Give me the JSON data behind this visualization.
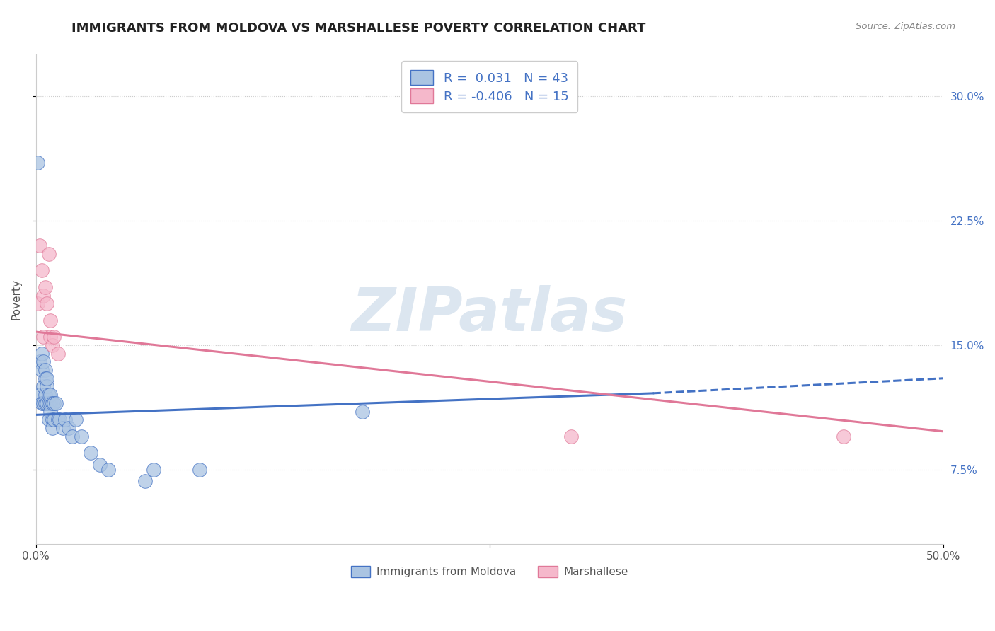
{
  "title": "IMMIGRANTS FROM MOLDOVA VS MARSHALLESE POVERTY CORRELATION CHART",
  "source_text": "Source: ZipAtlas.com",
  "ylabel": "Poverty",
  "yticks": [
    0.075,
    0.15,
    0.225,
    0.3
  ],
  "ytick_labels": [
    "7.5%",
    "15.0%",
    "22.5%",
    "30.0%"
  ],
  "xlim": [
    0.0,
    0.5
  ],
  "ylim": [
    0.03,
    0.325
  ],
  "legend_entry1": "R =  0.031   N = 43",
  "legend_entry2": "R = -0.406   N = 15",
  "legend_label1": "Immigrants from Moldova",
  "legend_label2": "Marshallese",
  "blue_color": "#aac4e2",
  "pink_color": "#f5b8cb",
  "blue_line_color": "#4472c4",
  "pink_line_color": "#e07898",
  "blue_dots_x": [
    0.001,
    0.002,
    0.002,
    0.003,
    0.003,
    0.003,
    0.004,
    0.004,
    0.004,
    0.005,
    0.005,
    0.005,
    0.005,
    0.006,
    0.006,
    0.006,
    0.007,
    0.007,
    0.007,
    0.008,
    0.008,
    0.008,
    0.009,
    0.009,
    0.009,
    0.01,
    0.01,
    0.011,
    0.012,
    0.013,
    0.015,
    0.016,
    0.018,
    0.02,
    0.022,
    0.025,
    0.03,
    0.035,
    0.04,
    0.06,
    0.065,
    0.09,
    0.18
  ],
  "blue_dots_y": [
    0.26,
    0.14,
    0.12,
    0.135,
    0.115,
    0.145,
    0.125,
    0.115,
    0.14,
    0.135,
    0.115,
    0.12,
    0.13,
    0.115,
    0.125,
    0.13,
    0.115,
    0.12,
    0.105,
    0.115,
    0.12,
    0.11,
    0.105,
    0.115,
    0.1,
    0.115,
    0.105,
    0.115,
    0.105,
    0.105,
    0.1,
    0.105,
    0.1,
    0.095,
    0.105,
    0.095,
    0.085,
    0.078,
    0.075,
    0.068,
    0.075,
    0.075,
    0.11
  ],
  "pink_dots_x": [
    0.001,
    0.002,
    0.003,
    0.004,
    0.004,
    0.005,
    0.006,
    0.007,
    0.008,
    0.008,
    0.009,
    0.01,
    0.012,
    0.295,
    0.445
  ],
  "pink_dots_y": [
    0.175,
    0.21,
    0.195,
    0.18,
    0.155,
    0.185,
    0.175,
    0.205,
    0.155,
    0.165,
    0.15,
    0.155,
    0.145,
    0.095,
    0.095
  ],
  "blue_solid_xrange": [
    0.0,
    0.34
  ],
  "blue_dashed_xrange": [
    0.34,
    0.5
  ],
  "blue_line_start_y": 0.108,
  "blue_line_end_solid_y": 0.121,
  "blue_line_end_dashed_y": 0.13,
  "pink_line_start_y": 0.158,
  "pink_line_end_y": 0.098,
  "background_color": "#ffffff",
  "watermark_text": "ZIPatlas",
  "watermark_color": "#dce6f0",
  "title_fontsize": 13,
  "axis_label_fontsize": 11,
  "tick_fontsize": 11,
  "legend_fontsize": 13
}
